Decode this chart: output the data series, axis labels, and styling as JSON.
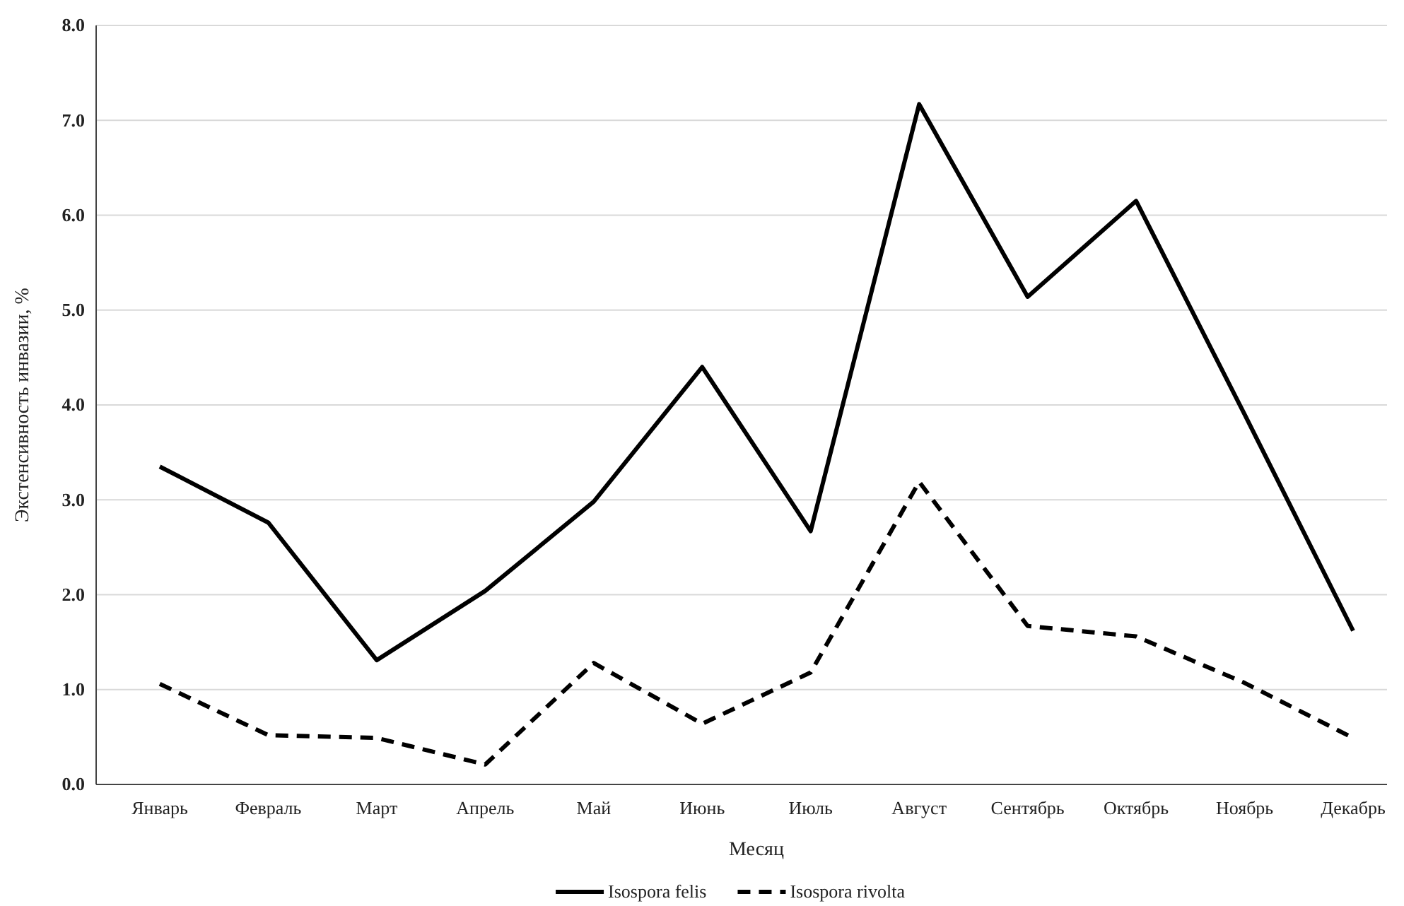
{
  "chart_data": {
    "type": "line",
    "xlabel": "Месяц",
    "ylabel": "Экстенсивность инвазии, %",
    "categories": [
      "Январь",
      "Февраль",
      "Март",
      "Апрель",
      "Май",
      "Июнь",
      "Июль",
      "Август",
      "Сентябрь",
      "Октябрь",
      "Ноябрь",
      "Декабрь"
    ],
    "series": [
      {
        "name": "Isospora felis",
        "color": "#000000",
        "line_style": "solid",
        "values": [
          3.35,
          2.76,
          1.31,
          2.04,
          2.98,
          4.4,
          2.67,
          7.17,
          5.14,
          6.15,
          3.9,
          1.62
        ]
      },
      {
        "name": "Isospora rivolta",
        "color": "#000000",
        "line_style": "dashed",
        "values": [
          1.06,
          0.52,
          0.49,
          0.21,
          1.28,
          0.64,
          1.18,
          3.19,
          1.67,
          1.56,
          1.07,
          0.49
        ]
      }
    ],
    "ylim": [
      0,
      8
    ],
    "yticks": [
      {
        "value": 0,
        "label": "0.0"
      },
      {
        "value": 1,
        "label": "1.0"
      },
      {
        "value": 2,
        "label": "2.0"
      },
      {
        "value": 3,
        "label": "3.0"
      },
      {
        "value": 4,
        "label": "4.0"
      },
      {
        "value": 5,
        "label": "5.0"
      },
      {
        "value": 6,
        "label": "6.0"
      },
      {
        "value": 7,
        "label": "7.0"
      },
      {
        "value": 8,
        "label": "8.0"
      }
    ],
    "grid": "y",
    "legend": "bottom",
    "marker": "none"
  }
}
